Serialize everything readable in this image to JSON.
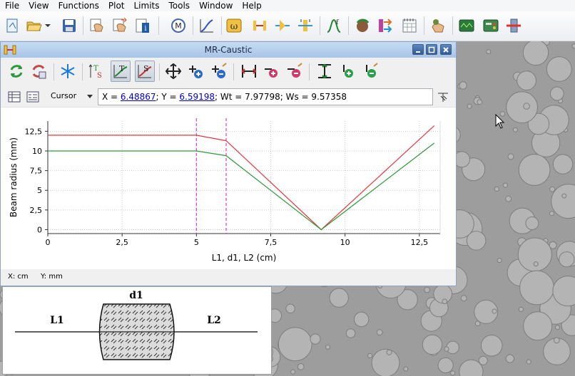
{
  "menu": [
    "File",
    "View",
    "Functions",
    "Plot",
    "Limits",
    "Tools",
    "Window",
    "Help"
  ],
  "window": {
    "title": "MR-Caustic",
    "cursor_mode": "Cursor",
    "cursor_readout": {
      "x_label": "X = ",
      "x_value": "6.48867",
      "y_label": "; Y = ",
      "y_value": "6.59198",
      "rest": "; Wt = 7.97798; Ws = 9.57358"
    },
    "status": {
      "x_unit": "X: cm",
      "y_unit": "Y: mm"
    }
  },
  "lens_panel": {
    "left_label": "L1",
    "center_label": "d1",
    "right_label": "L2"
  },
  "colors": {
    "tangential": "#e8363d",
    "sagittal": "#2e9a3a",
    "marker": "#d63cd6"
  },
  "chart_data": {
    "type": "line",
    "xlabel": "L1, d1, L2 (cm)",
    "ylabel": "Beam radius (mm)",
    "xlim": [
      0,
      13.2
    ],
    "ylim": [
      -0.5,
      13.8
    ],
    "xticks": [
      0,
      2.5,
      5,
      7.5,
      10,
      12.5
    ],
    "xtick_labels": [
      "0",
      "2,5",
      "5",
      "7,5",
      "10",
      "12,5"
    ],
    "yticks": [
      0,
      2.5,
      5,
      7.5,
      10,
      12.5
    ],
    "ytick_labels": [
      "0",
      "2,5",
      "5",
      "7,5",
      "10",
      "12,5"
    ],
    "grid": true,
    "markers_x": [
      5,
      6
    ],
    "series": [
      {
        "color": "#e8363d",
        "x": [
          0,
          5,
          6,
          9.2,
          13
        ],
        "y": [
          12,
          12,
          11.3,
          0,
          13.2
        ]
      },
      {
        "color": "#2e9a3a",
        "x": [
          0,
          5,
          6,
          9.2,
          13
        ],
        "y": [
          10,
          10,
          9.4,
          0,
          11
        ]
      }
    ]
  }
}
